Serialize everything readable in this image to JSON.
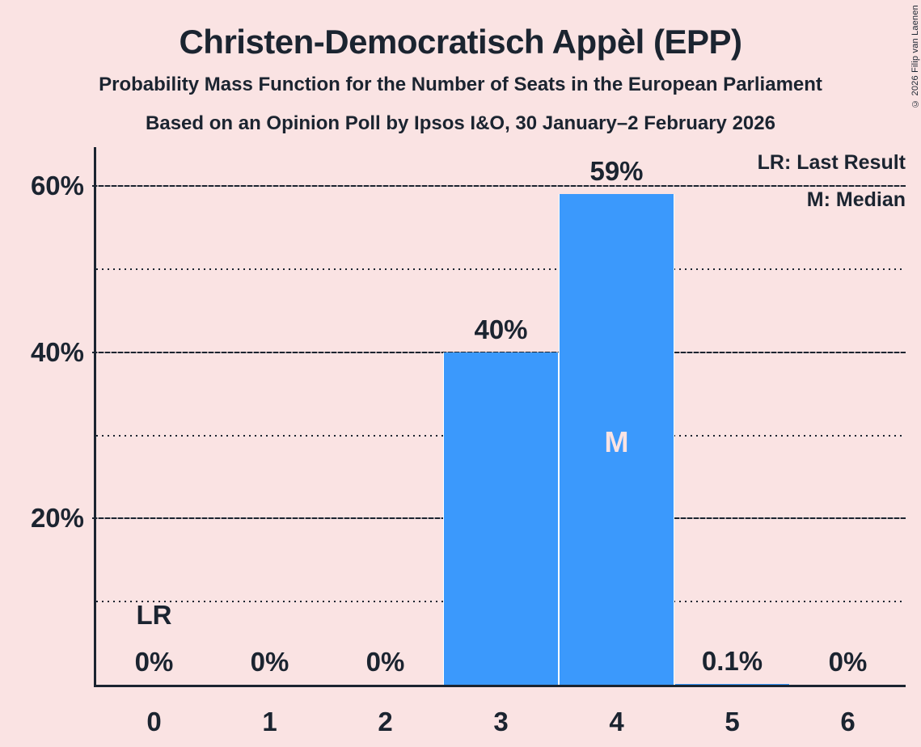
{
  "header": {
    "title": "Christen-Democratisch Appèl (EPP)",
    "subtitle_line1": "Probability Mass Function for the Number of Seats in the European Parliament",
    "subtitle_line2": "Based on an Opinion Poll by Ipsos I&O, 30 January–2 February 2026"
  },
  "copyright": "© 2026 Filip van Laenen",
  "legend": {
    "last_result_label": "LR: Last Result",
    "median_label": "M: Median"
  },
  "colors": {
    "background": "#fae3e3",
    "text": "#1b2430",
    "bar": "#3b99fc",
    "bar_inner_label": "#fae3e3",
    "bar_separator": "#ffffff"
  },
  "chart_data": {
    "type": "bar",
    "title": "Christen-Democratisch Appèl (EPP)",
    "subtitle": "Probability Mass Function for the Number of Seats in the European Parliament",
    "source_note": "Based on an Opinion Poll by Ipsos I&O, 30 January–2 February 2026",
    "categories": [
      "0",
      "1",
      "2",
      "3",
      "4",
      "5",
      "6"
    ],
    "values": [
      0,
      0,
      0,
      40,
      59,
      0.1,
      0
    ],
    "bar_labels": [
      "0%",
      "0%",
      "0%",
      "40%",
      "59%",
      "0.1%",
      "0%"
    ],
    "xlabel": "",
    "ylabel": "",
    "ylim": [
      0,
      64.7
    ],
    "y_ticks": [
      {
        "value": 20,
        "label": "20%"
      },
      {
        "value": 40,
        "label": "40%"
      },
      {
        "value": 60,
        "label": "60%"
      }
    ],
    "gridlines": {
      "major": [
        20,
        40,
        60
      ],
      "minor": [
        10,
        30,
        50
      ]
    },
    "legend_position": "top-right",
    "annotations": [
      {
        "text": "LR",
        "meaning": "Last Result",
        "category_index": 0,
        "placement": "above-axis"
      },
      {
        "text": "M",
        "meaning": "Median",
        "category_index": 4,
        "placement": "inside-bar"
      }
    ]
  }
}
